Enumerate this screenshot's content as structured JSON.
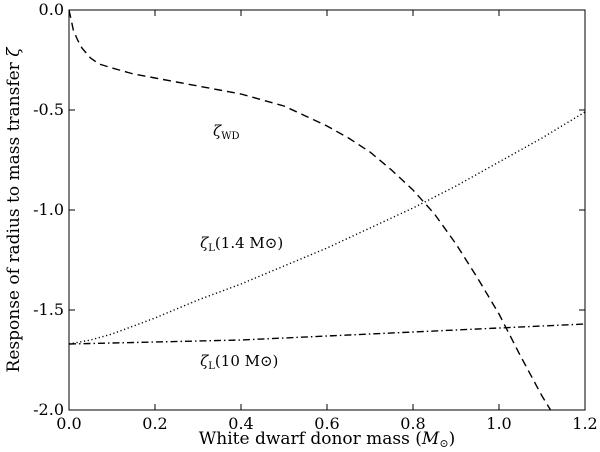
{
  "chart_data": {
    "type": "line",
    "xlabel_main": "White dwarf donor mass (",
    "xlabel_var": "M",
    "xlabel_sub": "⊙",
    "xlabel_close": ")",
    "ylabel": "Response of radius to mass transfer ",
    "ylabel_var": "ζ",
    "xlim": [
      0.0,
      1.2
    ],
    "ylim": [
      -2.0,
      0.0
    ],
    "xticks": [
      "0.0",
      "0.2",
      "0.4",
      "0.6",
      "0.8",
      "1.0",
      "1.2"
    ],
    "yticks": [
      "0.0",
      "-0.5",
      "-1.0",
      "-1.5",
      "-2.0"
    ],
    "grid": false,
    "series": [
      {
        "name": "ζWD",
        "label_main": "ζ",
        "label_sub": "WD",
        "label_tail": "",
        "style": "dashed",
        "x": [
          0.0,
          0.005,
          0.01,
          0.02,
          0.03,
          0.05,
          0.07,
          0.1,
          0.15,
          0.2,
          0.25,
          0.3,
          0.35,
          0.4,
          0.45,
          0.5,
          0.55,
          0.6,
          0.65,
          0.7,
          0.75,
          0.8,
          0.85,
          0.9,
          0.95,
          1.0,
          1.05,
          1.08,
          1.1,
          1.12
        ],
        "y": [
          0.0,
          -0.05,
          -0.1,
          -0.15,
          -0.19,
          -0.24,
          -0.27,
          -0.29,
          -0.32,
          -0.34,
          -0.36,
          -0.38,
          -0.4,
          -0.42,
          -0.45,
          -0.48,
          -0.53,
          -0.58,
          -0.64,
          -0.71,
          -0.8,
          -0.9,
          -1.02,
          -1.17,
          -1.34,
          -1.52,
          -1.73,
          -1.85,
          -1.93,
          -2.0
        ]
      },
      {
        "name": "ζL(1.4 M⊙)",
        "label_main": "ζ",
        "label_sub": "L",
        "label_tail": "(1.4 M⊙)",
        "style": "dotted",
        "x": [
          0.0,
          0.05,
          0.1,
          0.15,
          0.2,
          0.3,
          0.4,
          0.5,
          0.6,
          0.7,
          0.8,
          0.9,
          1.0,
          1.1,
          1.2
        ],
        "y": [
          -1.67,
          -1.65,
          -1.62,
          -1.58,
          -1.54,
          -1.45,
          -1.37,
          -1.28,
          -1.19,
          -1.09,
          -0.99,
          -0.88,
          -0.76,
          -0.64,
          -0.51
        ]
      },
      {
        "name": "ζL(10 M⊙)",
        "label_main": "ζ",
        "label_sub": "L",
        "label_tail": "(10 M⊙)",
        "style": "dashdot",
        "x": [
          0.0,
          0.2,
          0.4,
          0.6,
          0.8,
          1.0,
          1.2
        ],
        "y": [
          -1.67,
          -1.66,
          -1.65,
          -1.63,
          -1.61,
          -1.59,
          -1.57
        ]
      }
    ]
  }
}
